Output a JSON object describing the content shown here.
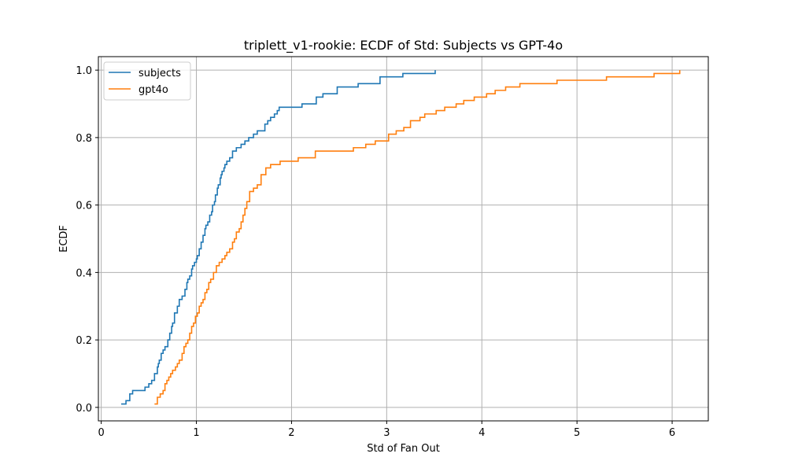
{
  "chart_data": {
    "type": "line",
    "title": "triplett_v1-rookie: ECDF of Std: Subjects vs GPT-4o",
    "xlabel": "Std of Fan Out",
    "ylabel": "ECDF",
    "xlim": [
      -0.03,
      6.38
    ],
    "ylim": [
      -0.04,
      1.04
    ],
    "xticks": [
      0,
      1,
      2,
      3,
      4,
      5,
      6
    ],
    "yticks": [
      0.0,
      0.2,
      0.4,
      0.6,
      0.8,
      1.0
    ],
    "xtick_labels": [
      "0",
      "1",
      "2",
      "3",
      "4",
      "5",
      "6"
    ],
    "ytick_labels": [
      "0.0",
      "0.2",
      "0.4",
      "0.6",
      "0.8",
      "1.0"
    ],
    "grid": true,
    "legend_position": "top-left",
    "series": [
      {
        "name": "subjects",
        "color": "#1f77b4",
        "step": true,
        "x": [
          0.21,
          0.26,
          0.3,
          0.33,
          0.46,
          0.5,
          0.53,
          0.56,
          0.59,
          0.6,
          0.61,
          0.63,
          0.65,
          0.67,
          0.7,
          0.72,
          0.74,
          0.75,
          0.77,
          0.78,
          0.8,
          0.82,
          0.85,
          0.88,
          0.9,
          0.91,
          0.93,
          0.95,
          0.96,
          0.98,
          1.0,
          1.01,
          1.03,
          1.05,
          1.07,
          1.09,
          1.1,
          1.12,
          1.14,
          1.16,
          1.17,
          1.19,
          1.2,
          1.22,
          1.23,
          1.25,
          1.26,
          1.27,
          1.29,
          1.3,
          1.32,
          1.35,
          1.38,
          1.42,
          1.47,
          1.51,
          1.55,
          1.6,
          1.64,
          1.67,
          1.72,
          1.75,
          1.78,
          1.82,
          1.85,
          1.87,
          1.89,
          1.91,
          1.93,
          1.95,
          2.11,
          2.26,
          2.33,
          2.48,
          2.7,
          2.93,
          3.17,
          3.51
        ],
        "y": [
          0.01,
          0.02,
          0.04,
          0.05,
          0.06,
          0.07,
          0.08,
          0.1,
          0.12,
          0.13,
          0.14,
          0.16,
          0.17,
          0.18,
          0.2,
          0.22,
          0.24,
          0.25,
          0.28,
          0.28,
          0.3,
          0.32,
          0.33,
          0.35,
          0.37,
          0.38,
          0.39,
          0.41,
          0.42,
          0.43,
          0.44,
          0.45,
          0.47,
          0.49,
          0.51,
          0.53,
          0.54,
          0.55,
          0.57,
          0.58,
          0.6,
          0.61,
          0.63,
          0.65,
          0.66,
          0.68,
          0.69,
          0.7,
          0.71,
          0.72,
          0.73,
          0.74,
          0.76,
          0.77,
          0.78,
          0.79,
          0.8,
          0.81,
          0.82,
          0.82,
          0.84,
          0.85,
          0.86,
          0.87,
          0.88,
          0.89,
          0.89,
          0.89,
          0.89,
          0.89,
          0.9,
          0.92,
          0.93,
          0.95,
          0.96,
          0.98,
          0.99,
          1.0
        ]
      },
      {
        "name": "gpt4o",
        "color": "#ff7f0e",
        "step": true,
        "x": [
          0.56,
          0.59,
          0.62,
          0.65,
          0.67,
          0.69,
          0.71,
          0.73,
          0.75,
          0.78,
          0.8,
          0.82,
          0.85,
          0.87,
          0.89,
          0.91,
          0.93,
          0.95,
          0.97,
          0.99,
          1.01,
          1.03,
          1.05,
          1.07,
          1.09,
          1.11,
          1.13,
          1.15,
          1.18,
          1.21,
          1.24,
          1.27,
          1.3,
          1.32,
          1.35,
          1.38,
          1.4,
          1.42,
          1.45,
          1.47,
          1.49,
          1.51,
          1.53,
          1.56,
          1.6,
          1.64,
          1.68,
          1.73,
          1.78,
          1.88,
          2.07,
          2.25,
          2.65,
          2.78,
          2.88,
          3.02,
          3.1,
          3.18,
          3.25,
          3.35,
          3.4,
          3.52,
          3.61,
          3.73,
          3.81,
          3.92,
          4.05,
          4.14,
          4.25,
          4.4,
          4.62,
          4.79,
          4.92,
          5.18,
          5.31,
          5.72,
          5.81,
          6.08
        ],
        "y": [
          0.01,
          0.03,
          0.04,
          0.05,
          0.07,
          0.08,
          0.09,
          0.1,
          0.11,
          0.12,
          0.13,
          0.14,
          0.16,
          0.18,
          0.19,
          0.2,
          0.22,
          0.24,
          0.25,
          0.27,
          0.28,
          0.3,
          0.31,
          0.32,
          0.34,
          0.35,
          0.37,
          0.38,
          0.4,
          0.42,
          0.43,
          0.44,
          0.45,
          0.46,
          0.47,
          0.49,
          0.5,
          0.52,
          0.53,
          0.55,
          0.57,
          0.59,
          0.61,
          0.64,
          0.65,
          0.66,
          0.69,
          0.71,
          0.72,
          0.73,
          0.74,
          0.76,
          0.77,
          0.78,
          0.79,
          0.81,
          0.82,
          0.83,
          0.85,
          0.86,
          0.87,
          0.88,
          0.89,
          0.9,
          0.91,
          0.92,
          0.93,
          0.94,
          0.95,
          0.96,
          0.96,
          0.97,
          0.97,
          0.97,
          0.98,
          0.98,
          0.99,
          1.0
        ]
      }
    ]
  }
}
